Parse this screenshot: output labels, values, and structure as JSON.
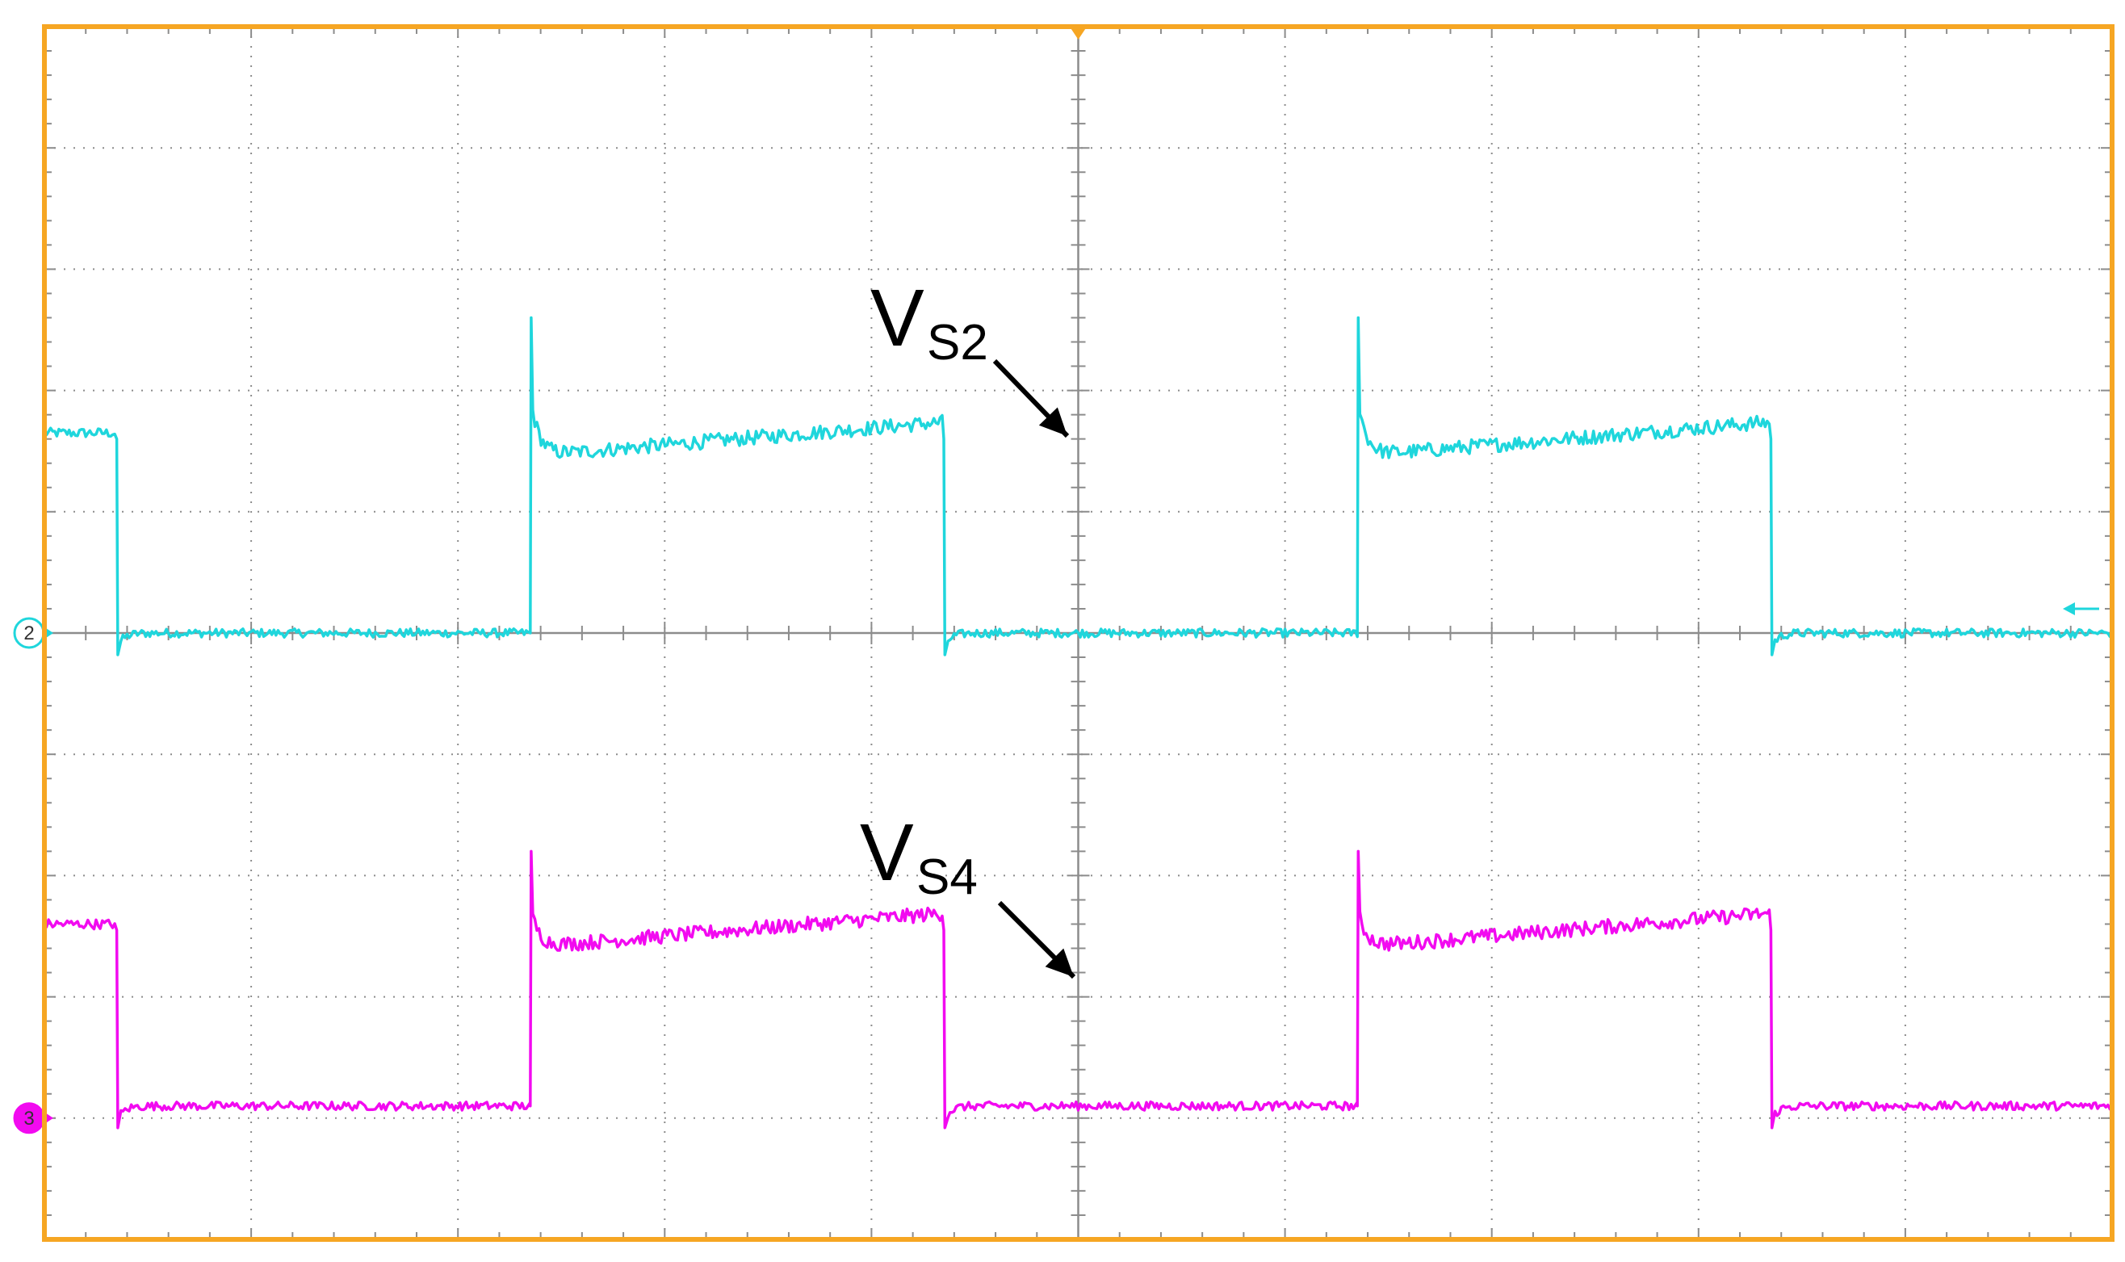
{
  "colors": {
    "frame": "#F6A623",
    "grid": "#8C8C8C",
    "ch2": "#1FD6DC",
    "ch3": "#F20AF0",
    "arrow": "#000000",
    "background": "#FFFFFF"
  },
  "chart_data": {
    "type": "line",
    "grid": true,
    "x_divisions": 10,
    "y_divisions": 10,
    "xlim": [
      0,
      10
    ],
    "ylim": [
      0,
      10
    ],
    "trigger_marker": "orange-triangle-top",
    "channel_markers": [
      {
        "id": "ch2",
        "label": "2",
        "ground_div": 5.0,
        "color": "#1FD6DC"
      },
      {
        "id": "ch3",
        "label": "3",
        "ground_div": 1.0,
        "color": "#F20AF0"
      }
    ],
    "period_div": 4.0,
    "series": [
      {
        "id": "ch2",
        "low_div": 5.0,
        "high_div": 6.6,
        "spike_div": 7.6,
        "first_rise_div": 2.0,
        "first_fall_div": 0.35,
        "color": "#1FD6DC"
      },
      {
        "id": "ch3",
        "low_div": 1.1,
        "high_div": 2.55,
        "spike_div": 3.2,
        "first_rise_div": 2.0,
        "first_fall_div": 0.35,
        "color": "#F20AF0"
      }
    ],
    "annotations": [
      {
        "id": "vs2",
        "base": "V",
        "sub": "S2",
        "series": "ch2"
      },
      {
        "id": "vs4",
        "base": "V",
        "sub": "S4",
        "series": "ch3"
      }
    ],
    "right_edge_marker": {
      "color": "#1FD6DC",
      "div": 5.2
    }
  }
}
